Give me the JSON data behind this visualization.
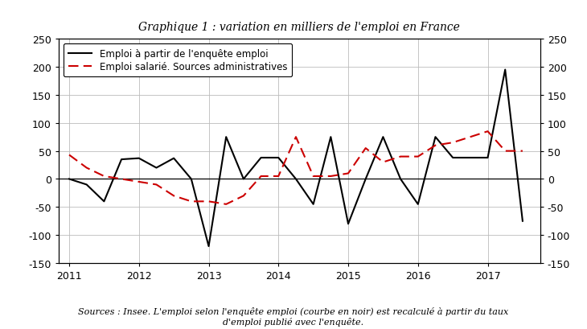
{
  "title": "Graphique 1 : variation en milliers de l'emploi en France",
  "footnote_line1": "Sources : Insee. L'emploi selon l'enquête emploi (courbe en noir) est recalculé à partir du taux",
  "footnote_line2": "d'emploi publié avec l'enquête.",
  "legend1": "Emploi à partir de l'enquête emploi",
  "legend2": "Emploi salarié. Sources administratives",
  "ylim": [
    -150,
    250
  ],
  "yticks": [
    -150,
    -100,
    -50,
    0,
    50,
    100,
    150,
    200,
    250
  ],
  "x_enquete": [
    2011.0,
    2011.25,
    2011.5,
    2011.75,
    2012.0,
    2012.25,
    2012.5,
    2012.75,
    2013.0,
    2013.25,
    2013.5,
    2013.75,
    2014.0,
    2014.25,
    2014.5,
    2014.75,
    2015.0,
    2015.25,
    2015.5,
    2015.75,
    2016.0,
    2016.25,
    2016.5,
    2016.75,
    2017.0,
    2017.25,
    2017.5
  ],
  "y_enquete": [
    0,
    -10,
    -40,
    35,
    37,
    20,
    37,
    0,
    -120,
    75,
    0,
    38,
    38,
    0,
    -45,
    75,
    -80,
    0,
    75,
    0,
    -45,
    75,
    38,
    38,
    38,
    195,
    -75
  ],
  "x_admin": [
    2011.0,
    2011.25,
    2011.5,
    2011.75,
    2012.0,
    2012.25,
    2012.5,
    2012.75,
    2013.0,
    2013.25,
    2013.5,
    2013.75,
    2014.0,
    2014.25,
    2014.5,
    2014.75,
    2015.0,
    2015.25,
    2015.5,
    2015.75,
    2016.0,
    2016.25,
    2016.5,
    2016.75,
    2017.0,
    2017.25,
    2017.5
  ],
  "y_admin": [
    43,
    20,
    5,
    0,
    -5,
    -10,
    -30,
    -40,
    -40,
    -45,
    -30,
    5,
    5,
    75,
    5,
    5,
    10,
    55,
    30,
    40,
    40,
    60,
    65,
    75,
    85,
    50,
    50
  ],
  "color_enquete": "#000000",
  "color_admin": "#cc0000",
  "background_color": "#ffffff",
  "grid_color": "#bbbbbb",
  "xlim": [
    2010.85,
    2017.75
  ],
  "xticks": [
    2011,
    2012,
    2013,
    2014,
    2015,
    2016,
    2017
  ],
  "xticklabels": [
    "2011",
    "2012",
    "2013",
    "2014",
    "2015",
    "2016",
    "2017"
  ]
}
